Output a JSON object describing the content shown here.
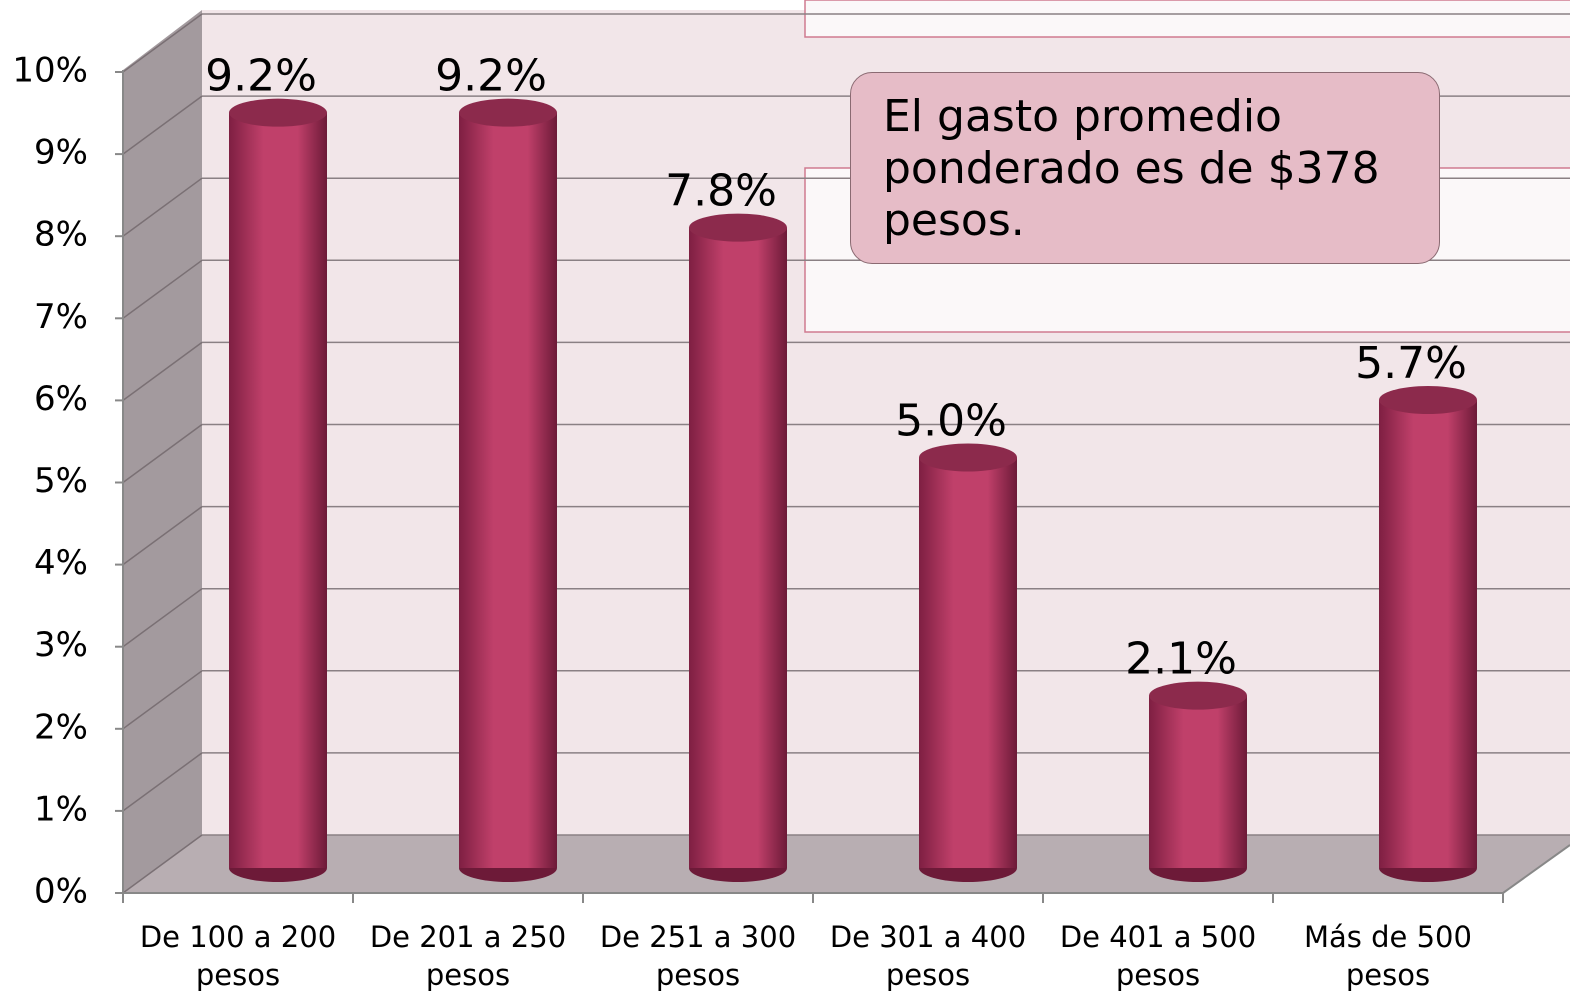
{
  "chart_data": {
    "type": "bar",
    "categories": [
      "De 100 a 200 pesos",
      "De 201 a 250 pesos",
      "De 251 a 300 pesos",
      "De 301 a 400 pesos",
      "De 401 a 500 pesos",
      "Más de 500 pesos"
    ],
    "values": [
      9.2,
      9.2,
      7.8,
      5.0,
      2.1,
      5.7
    ],
    "value_labels": [
      "9.2%",
      "9.2%",
      "7.8%",
      "5.0%",
      "2.1%",
      "5.7%"
    ],
    "color": "#c0406a",
    "ylim": [
      0,
      10
    ],
    "yticks": [
      {
        "value": 0,
        "label": "0%"
      },
      {
        "value": 1,
        "label": "1%"
      },
      {
        "value": 2,
        "label": "2%"
      },
      {
        "value": 3,
        "label": "3%"
      },
      {
        "value": 4,
        "label": "4%"
      },
      {
        "value": 5,
        "label": "5%"
      },
      {
        "value": 6,
        "label": "6%"
      },
      {
        "value": 7,
        "label": "7%"
      },
      {
        "value": 8,
        "label": "8%"
      },
      {
        "value": 9,
        "label": "9%"
      },
      {
        "value": 10,
        "label": "10%"
      }
    ],
    "grid": true,
    "annotation": "El gasto promedio ponderado es de $378 pesos."
  }
}
